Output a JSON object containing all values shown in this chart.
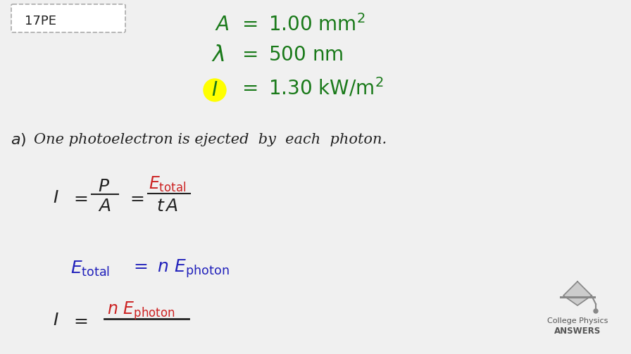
{
  "bg_color": "#f0f0f0",
  "title_box_text": "17PE",
  "title_box_color": "#ffffff",
  "title_box_border": "#aaaaaa",
  "green_color": "#1a7a1a",
  "blue_color": "#2222bb",
  "red_color": "#cc2222",
  "black_color": "#222222",
  "yellow_highlight": "#ffff00",
  "logo_text1": "College Physics",
  "logo_text2": "ANSWERS"
}
